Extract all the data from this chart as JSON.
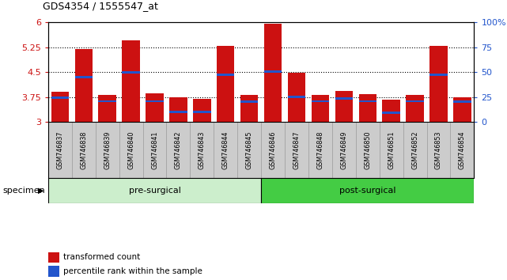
{
  "title": "GDS4354 / 1555547_at",
  "samples": [
    "GSM746837",
    "GSM746838",
    "GSM746839",
    "GSM746840",
    "GSM746841",
    "GSM746842",
    "GSM746843",
    "GSM746844",
    "GSM746845",
    "GSM746846",
    "GSM746847",
    "GSM746848",
    "GSM746849",
    "GSM746850",
    "GSM746851",
    "GSM746852",
    "GSM746853",
    "GSM746854"
  ],
  "bar_values": [
    3.9,
    5.2,
    3.8,
    5.45,
    3.87,
    3.73,
    3.7,
    5.28,
    3.8,
    5.97,
    4.48,
    3.8,
    3.92,
    3.83,
    3.68,
    3.8,
    5.3,
    3.75
  ],
  "percentile_values": [
    3.72,
    4.35,
    3.62,
    4.5,
    3.62,
    3.3,
    3.3,
    4.42,
    3.6,
    4.52,
    3.75,
    3.62,
    3.7,
    3.62,
    3.28,
    3.62,
    4.42,
    3.6
  ],
  "ymin": 3.0,
  "ymax": 6.0,
  "yticks": [
    3.0,
    3.75,
    4.5,
    5.25,
    6.0
  ],
  "ytick_labels": [
    "3",
    "3.75",
    "4.5",
    "5.25",
    "6"
  ],
  "right_ytick_labels": [
    "0",
    "25",
    "50",
    "75",
    "100%"
  ],
  "right_yticks": [
    0,
    25,
    50,
    75,
    100
  ],
  "gridlines": [
    3.75,
    4.5,
    5.25
  ],
  "bar_color": "#cc1111",
  "blue_color": "#2255cc",
  "pre_surgical_count": 9,
  "group_pre_color": "#cceecc",
  "group_post_color": "#44cc44",
  "group_pre_label": "pre-surgical",
  "group_post_label": "post-surgical",
  "xtick_bg": "#cccccc",
  "legend_items": [
    {
      "label": "transformed count",
      "color": "#cc1111"
    },
    {
      "label": "percentile rank within the sample",
      "color": "#2255cc"
    }
  ],
  "specimen_label": "specimen"
}
